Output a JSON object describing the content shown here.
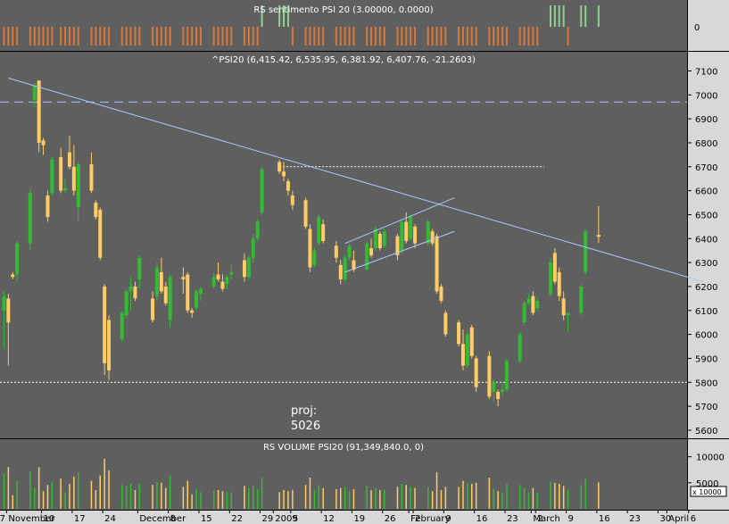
{
  "panels": {
    "sentiment": {
      "title": "RS sentimento PSI 20 (3.00000, 0.0000)",
      "zero_label": "0",
      "positive_color": "#8fd18f",
      "negative_color": "#d8783a"
    },
    "price": {
      "title": "^PSI20 (6,415.42, 6,535.95, 6,381.92, 6,407.76, -21.2603)",
      "y_ticks": [
        7100,
        7000,
        6900,
        6800,
        6700,
        6600,
        6500,
        6400,
        6300,
        6200,
        6100,
        6000,
        5900,
        5800,
        5700,
        5600
      ],
      "ylim": [
        5570,
        7180
      ],
      "proj_label": "proj:",
      "proj_value": "5026",
      "up_color": "#33bb33",
      "down_color": "#ffcc66",
      "h_dashed_level": 6970,
      "h_dotted_levels": [
        6700,
        5800
      ]
    },
    "volume": {
      "title": "RS VOLUME PSI20 (91,349,840.0, 0)",
      "y_ticks": [
        10000,
        5000
      ],
      "unit_label": "x 10000"
    },
    "x_axis": {
      "labels": [
        {
          "text": "7",
          "day": -1
        },
        {
          "text": "November",
          "day": 1
        },
        {
          "text": "10",
          "day": 9
        },
        {
          "text": "17",
          "day": 16
        },
        {
          "text": "24",
          "day": 23
        },
        {
          "text": "December",
          "day": 31
        },
        {
          "text": "8",
          "day": 38
        },
        {
          "text": "15",
          "day": 45
        },
        {
          "text": "22",
          "day": 52
        },
        {
          "text": "29",
          "day": 59
        },
        {
          "text": "2009",
          "day": 62
        },
        {
          "text": "5",
          "day": 66
        },
        {
          "text": "12",
          "day": 73
        },
        {
          "text": "19",
          "day": 80
        },
        {
          "text": "26",
          "day": 87
        },
        {
          "text": "February",
          "day": 93
        },
        {
          "text": "2",
          "day": 94
        },
        {
          "text": "9",
          "day": 101
        },
        {
          "text": "16",
          "day": 108
        },
        {
          "text": "23",
          "day": 115
        },
        {
          "text": "March",
          "day": 121
        },
        {
          "text": "2",
          "day": 122
        },
        {
          "text": "9",
          "day": 129
        },
        {
          "text": "16",
          "day": 136
        },
        {
          "text": "23",
          "day": 143
        },
        {
          "text": "30",
          "day": 150
        },
        {
          "text": "April",
          "day": 152
        },
        {
          "text": "6",
          "day": 157
        }
      ]
    }
  },
  "chart_data": {
    "type": "candlestick",
    "title": "^PSI20 (6,415.42, 6,535.95, 6,381.92, 6,407.76, -21.2603)",
    "x_unit": "trading day, Nov 2008 - Apr 2009",
    "ohlc": [
      [
        6100,
        6180,
        5940,
        6160
      ],
      [
        6150,
        6170,
        5870,
        6050
      ],
      [
        6250,
        6260,
        6230,
        6240
      ],
      [
        6250,
        6390,
        6220,
        6380
      ],
      [
        6380,
        6610,
        6350,
        6590
      ],
      [
        6980,
        7050,
        6950,
        7040
      ],
      [
        7060,
        7060,
        6760,
        6800
      ],
      [
        6810,
        6820,
        6750,
        6790
      ],
      [
        6580,
        6600,
        6470,
        6490
      ],
      [
        6590,
        6740,
        6580,
        6730
      ],
      [
        6740,
        6780,
        6590,
        6600
      ],
      [
        6600,
        6650,
        6590,
        6610
      ],
      [
        6760,
        6830,
        6690,
        6700
      ],
      [
        6700,
        6790,
        6580,
        6600
      ],
      [
        6530,
        6720,
        6470,
        6710
      ],
      [
        6710,
        6760,
        6590,
        6600
      ],
      [
        6550,
        6560,
        6480,
        6490
      ],
      [
        6520,
        6530,
        6310,
        6320
      ],
      [
        6200,
        6210,
        5830,
        5880
      ],
      [
        6060,
        6080,
        5810,
        5850
      ],
      [
        5980,
        6100,
        5970,
        6090
      ],
      [
        6080,
        6190,
        6070,
        6180
      ],
      [
        6180,
        6240,
        6100,
        6200
      ],
      [
        6200,
        6220,
        6140,
        6150
      ],
      [
        6230,
        6330,
        6190,
        6320
      ],
      [
        6150,
        6180,
        6050,
        6060
      ],
      [
        6160,
        6300,
        6140,
        6280
      ],
      [
        6260,
        6320,
        6170,
        6180
      ],
      [
        6200,
        6220,
        6120,
        6130
      ],
      [
        6060,
        6250,
        6030,
        6240
      ],
      [
        6240,
        6280,
        6170,
        6230
      ],
      [
        6250,
        6260,
        6090,
        6100
      ],
      [
        6100,
        6110,
        6070,
        6090
      ],
      [
        6110,
        6190,
        6100,
        6180
      ],
      [
        6170,
        6200,
        6140,
        6190
      ],
      [
        6200,
        6260,
        6190,
        6240
      ],
      [
        6250,
        6300,
        6220,
        6230
      ],
      [
        6220,
        6250,
        6180,
        6190
      ],
      [
        6210,
        6250,
        6190,
        6240
      ],
      [
        6250,
        6290,
        6230,
        6260
      ],
      [
        6310,
        6340,
        6220,
        6240
      ],
      [
        6240,
        6330,
        6230,
        6320
      ],
      [
        6320,
        6420,
        6300,
        6400
      ],
      [
        6400,
        6480,
        6390,
        6470
      ],
      [
        6510,
        6700,
        6500,
        6690
      ],
      [
        6720,
        6730,
        6670,
        6680
      ],
      [
        6680,
        6720,
        6640,
        6660
      ],
      [
        6640,
        6650,
        6580,
        6600
      ],
      [
        6580,
        6600,
        6520,
        6540
      ],
      [
        6560,
        6570,
        6440,
        6450
      ],
      [
        6440,
        6460,
        6260,
        6280
      ],
      [
        6290,
        6360,
        6280,
        6350
      ],
      [
        6380,
        6500,
        6370,
        6490
      ],
      [
        6460,
        6480,
        6380,
        6390
      ],
      [
        6370,
        6390,
        6300,
        6320
      ],
      [
        6290,
        6310,
        6210,
        6230
      ],
      [
        6230,
        6330,
        6220,
        6320
      ],
      [
        6320,
        6380,
        6310,
        6370
      ],
      [
        6310,
        6350,
        6260,
        6270
      ],
      [
        6270,
        6390,
        6270,
        6380
      ],
      [
        6360,
        6400,
        6320,
        6330
      ],
      [
        6360,
        6450,
        6350,
        6440
      ],
      [
        6420,
        6430,
        6350,
        6360
      ],
      [
        6370,
        6440,
        6360,
        6430
      ],
      [
        6410,
        6420,
        6310,
        6330
      ],
      [
        6350,
        6480,
        6340,
        6470
      ],
      [
        6470,
        6510,
        6380,
        6390
      ],
      [
        6400,
        6500,
        6390,
        6490
      ],
      [
        6450,
        6460,
        6360,
        6380
      ],
      [
        6380,
        6480,
        6370,
        6470
      ],
      [
        6430,
        6440,
        6370,
        6380
      ],
      [
        6410,
        6420,
        6170,
        6180
      ],
      [
        6200,
        6210,
        6130,
        6140
      ],
      [
        6090,
        6100,
        5990,
        6000
      ],
      [
        6050,
        6060,
        5950,
        5960
      ],
      [
        5960,
        6020,
        5850,
        5870
      ],
      [
        5870,
        6010,
        5860,
        6000
      ],
      [
        6030,
        6040,
        5900,
        5910
      ],
      [
        5900,
        5910,
        5760,
        5780
      ],
      [
        5910,
        5930,
        5730,
        5740
      ],
      [
        5760,
        5810,
        5720,
        5800
      ],
      [
        5760,
        5770,
        5700,
        5730
      ],
      [
        5760,
        5800,
        5740,
        5770
      ],
      [
        5770,
        5900,
        5760,
        5890
      ],
      [
        5890,
        6010,
        5880,
        6000
      ],
      [
        6050,
        6140,
        6040,
        6130
      ],
      [
        6130,
        6170,
        6120,
        6150
      ],
      [
        6160,
        6180,
        6080,
        6090
      ],
      [
        6110,
        6150,
        6100,
        6140
      ],
      [
        6170,
        6320,
        6160,
        6300
      ],
      [
        6340,
        6360,
        6210,
        6220
      ],
      [
        6260,
        6280,
        6140,
        6160
      ],
      [
        6150,
        6180,
        6060,
        6080
      ],
      [
        6080,
        6090,
        6010,
        6090
      ],
      [
        6090,
        6210,
        6080,
        6200
      ],
      [
        6260,
        6440,
        6250,
        6430
      ],
      [
        6415.42,
        6535.95,
        6381.92,
        6407.76
      ]
    ],
    "x_index_day": [
      0,
      1,
      2,
      3,
      6,
      7,
      8,
      9,
      10,
      11,
      13,
      14,
      15,
      16,
      17,
      20,
      21,
      22,
      23,
      24,
      27,
      28,
      29,
      30,
      31,
      34,
      35,
      36,
      37,
      38,
      41,
      42,
      43,
      44,
      45,
      48,
      49,
      50,
      51,
      52,
      55,
      56,
      57,
      58,
      59,
      63,
      64,
      65,
      66,
      69,
      70,
      71,
      72,
      73,
      76,
      77,
      78,
      79,
      80,
      83,
      84,
      85,
      86,
      87,
      90,
      91,
      92,
      93,
      94,
      97,
      98,
      99,
      100,
      101,
      104,
      105,
      106,
      107,
      108,
      111,
      112,
      113,
      114,
      115,
      118,
      119,
      120,
      121,
      122,
      125,
      126,
      127,
      128,
      129,
      132,
      133,
      136
    ],
    "sentiment": [
      -1,
      -1,
      -1,
      -1,
      -1,
      -1,
      -1,
      -1,
      -1,
      -1,
      -1,
      -1,
      -1,
      -1,
      -1,
      -1,
      -1,
      -1,
      -1,
      -1,
      -1,
      -1,
      -1,
      -1,
      -1,
      -1,
      -1,
      -1,
      -1,
      -1,
      -1,
      -1,
      -1,
      -1,
      -1,
      -1,
      -1,
      -1,
      -1,
      -1,
      -1,
      -1,
      -1,
      -1,
      1,
      1,
      1,
      1,
      -1,
      -1,
      -1,
      -1,
      -1,
      -1,
      -1,
      -1,
      -1,
      -1,
      -1,
      -1,
      -1,
      -1,
      -1,
      -1,
      -1,
      -1,
      -1,
      -1,
      -1,
      -1,
      -1,
      -1,
      -1,
      -1,
      -1,
      -1,
      -1,
      -1,
      -1,
      -1,
      -1,
      -1,
      -1,
      -1,
      -1,
      -1,
      -1,
      -1,
      -1,
      1,
      1,
      1,
      1,
      -1,
      1,
      1,
      1
    ],
    "volume_ylim": [
      0,
      12000
    ],
    "volume_units": "x 10000",
    "trend_lines": [
      {
        "style": "solid",
        "from": {
          "day": 1,
          "value": 7070
        },
        "to": {
          "day": 160,
          "value": 6220
        }
      },
      {
        "style": "solid",
        "from": {
          "day": 78,
          "value": 6260
        },
        "to": {
          "day": 103,
          "value": 6430
        }
      },
      {
        "style": "solid",
        "from": {
          "day": 78,
          "value": 6380
        },
        "to": {
          "day": 103,
          "value": 6570
        }
      }
    ]
  }
}
